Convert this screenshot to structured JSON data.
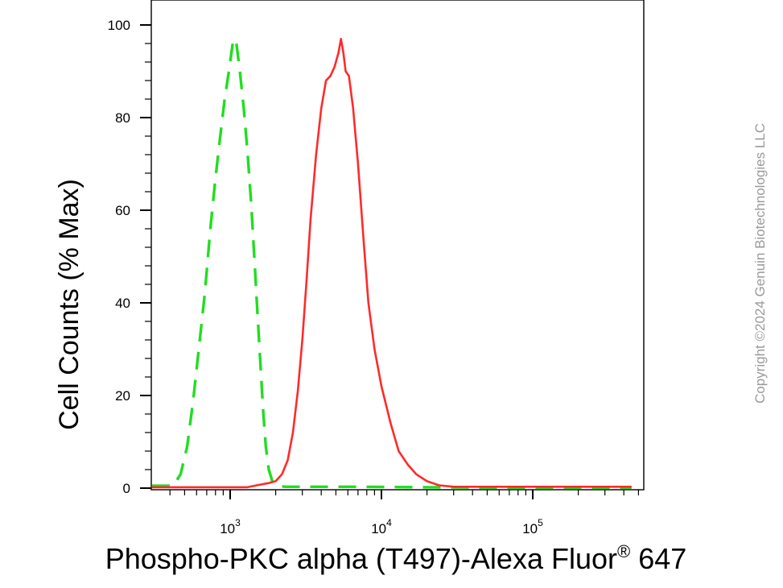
{
  "chart_data": {
    "type": "line",
    "x_scale": "log",
    "xlim": [
      300,
      500000
    ],
    "ylim": [
      0,
      100
    ],
    "ylabel": "Cell Counts (% Max)",
    "xlabel": "Phospho-PKC alpha (T497)-Alexa Fluor",
    "xlabel_superscript": "®",
    "xlabel_suffix": " 647",
    "yticks": [
      0,
      20,
      40,
      60,
      80,
      100
    ],
    "yticks_text": [
      "0",
      "20",
      "40",
      "60",
      "80",
      "100"
    ],
    "xticks_major": [
      1000,
      10000,
      100000
    ],
    "xticks_base": [
      "10",
      "10",
      "10"
    ],
    "xticks_exp": [
      "3",
      "4",
      "5"
    ],
    "grid": false,
    "series": [
      {
        "color": "#22dd22",
        "dash": "dashed",
        "points": [
          [
            300,
            0.5
          ],
          [
            380,
            0.5
          ],
          [
            420,
            0.5
          ],
          [
            470,
            3
          ],
          [
            520,
            9
          ],
          [
            570,
            19
          ],
          [
            620,
            30
          ],
          [
            680,
            42
          ],
          [
            740,
            56
          ],
          [
            800,
            67
          ],
          [
            860,
            76
          ],
          [
            920,
            84
          ],
          [
            980,
            90
          ],
          [
            1020,
            94
          ],
          [
            1050,
            97
          ],
          [
            1100,
            96
          ],
          [
            1160,
            90
          ],
          [
            1230,
            82
          ],
          [
            1300,
            73
          ],
          [
            1380,
            61
          ],
          [
            1450,
            49
          ],
          [
            1520,
            37
          ],
          [
            1590,
            26
          ],
          [
            1650,
            17
          ],
          [
            1720,
            9
          ],
          [
            1800,
            4
          ],
          [
            1900,
            1.5
          ],
          [
            2050,
            0.5
          ],
          [
            2300,
            0.3
          ],
          [
            3500,
            0.3
          ],
          [
            6000,
            0.3
          ],
          [
            20000,
            0.2
          ],
          [
            60000,
            0.1
          ],
          [
            100000,
            0.1
          ],
          [
            450000,
            0.1
          ]
        ]
      },
      {
        "color": "#ff2a2a",
        "dash": "solid",
        "points": [
          [
            300,
            0.2
          ],
          [
            1300,
            0.2
          ],
          [
            1500,
            0.6
          ],
          [
            1800,
            1.1
          ],
          [
            2000,
            1.5
          ],
          [
            2200,
            3
          ],
          [
            2400,
            6
          ],
          [
            2600,
            12
          ],
          [
            2800,
            21
          ],
          [
            3000,
            32
          ],
          [
            3200,
            45
          ],
          [
            3400,
            58
          ],
          [
            3700,
            72
          ],
          [
            4000,
            82
          ],
          [
            4300,
            88
          ],
          [
            4600,
            89
          ],
          [
            4900,
            91
          ],
          [
            5200,
            94
          ],
          [
            5400,
            97
          ],
          [
            5600,
            94
          ],
          [
            5800,
            90
          ],
          [
            6100,
            89
          ],
          [
            6500,
            82
          ],
          [
            7000,
            70
          ],
          [
            7600,
            54
          ],
          [
            8200,
            40
          ],
          [
            9000,
            30
          ],
          [
            10000,
            22
          ],
          [
            11500,
            14
          ],
          [
            13000,
            8
          ],
          [
            15000,
            5
          ],
          [
            17000,
            3
          ],
          [
            20000,
            1.5
          ],
          [
            24000,
            0.6
          ],
          [
            30000,
            0.3
          ],
          [
            60000,
            0.3
          ],
          [
            200000,
            0.3
          ],
          [
            450000,
            0.3
          ]
        ]
      }
    ]
  },
  "watermark": "Copyright ©2024 Genuin Biotechnologies LLC"
}
